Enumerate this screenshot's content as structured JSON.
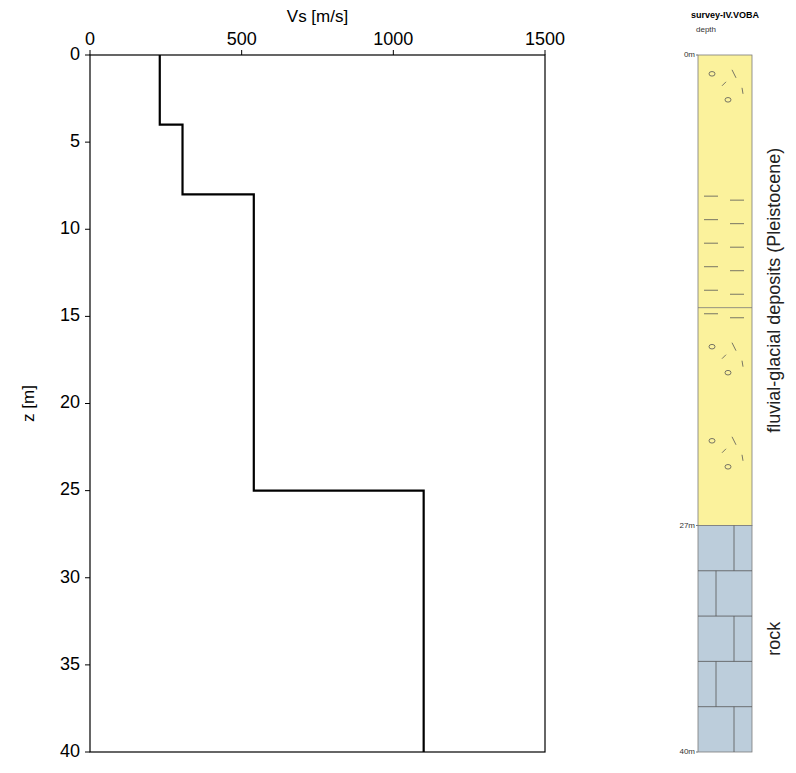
{
  "chart_data": {
    "type": "line",
    "x_label": "Vs [m/s]",
    "y_label": "z [m]",
    "x": [
      230,
      230,
      305,
      305,
      540,
      540,
      1100,
      1100
    ],
    "values": [
      0,
      4,
      4,
      8,
      8,
      25,
      25,
      40
    ],
    "color": "#000000",
    "xlim": [
      0,
      1500
    ],
    "xticks": [
      0,
      500,
      1000,
      1500
    ],
    "ylim": [
      40,
      0
    ],
    "yticks": [
      0,
      5,
      10,
      15,
      20,
      25,
      30,
      35,
      40
    ]
  },
  "column": {
    "title": "survey-IV.VOBA",
    "depth_label": "depth",
    "range": [
      0,
      40
    ],
    "depth_labels": [
      {
        "value": 0,
        "label": "0m"
      },
      {
        "value": 27,
        "label": "27m"
      },
      {
        "value": 40,
        "label": "40m"
      }
    ],
    "boundaries": [
      14.5
    ],
    "layers": [
      {
        "top": 0,
        "bottom": 27,
        "label": "fluvial-glacial deposits (Pleistocene)",
        "color": "#fbf29c"
      },
      {
        "top": 27,
        "bottom": 40,
        "label": "rock",
        "color": "#bccddb"
      }
    ]
  }
}
